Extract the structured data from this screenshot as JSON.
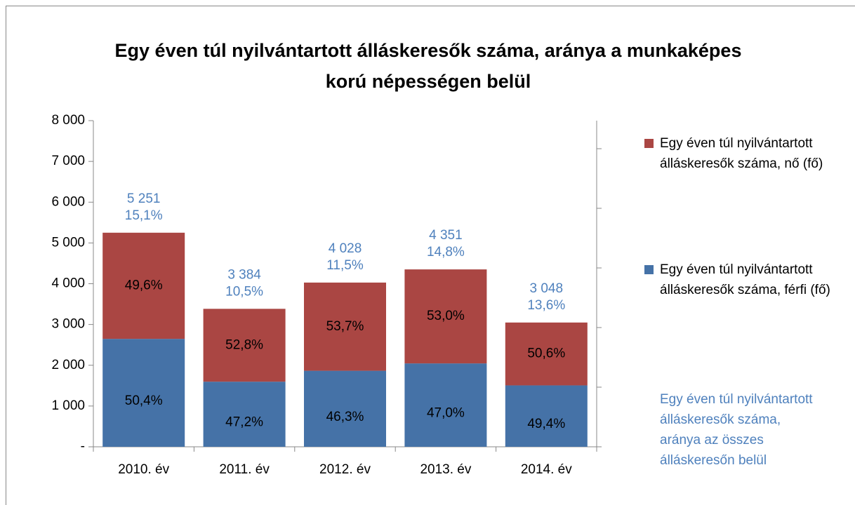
{
  "chart_data": {
    "type": "stacked_bar",
    "title": "Egy éven túl nyilvántartott álláskeresők száma, aránya a munkaképes korú népességen belül",
    "categories": [
      "2010. év",
      "2011. év",
      "2012. év",
      "2013. év",
      "2014. év"
    ],
    "series": [
      {
        "name": "Egy éven túl nyilvántartott álláskeresők száma, férfi (fő)",
        "color": "#4572a7",
        "values": [
          2647,
          1597,
          1865,
          2045,
          1506
        ],
        "share_labels": [
          "50,4%",
          "47,2%",
          "46,3%",
          "47,0%",
          "49,4%"
        ]
      },
      {
        "name": "Egy éven túl nyilvántartott álláskeresők száma, nő (fő)",
        "color": "#aa4643",
        "values": [
          2604,
          1787,
          2163,
          2306,
          1542
        ],
        "share_labels": [
          "49,6%",
          "52,8%",
          "53,7%",
          "53,0%",
          "50,6%"
        ]
      },
      {
        "name": "Egy éven túl nyilvántartott álláskeresők száma, aránya az összes álláskeresőn belül",
        "color": "#4f81bd",
        "axis": "y2",
        "values": [
          15.1,
          10.5,
          11.5,
          14.8,
          13.6
        ],
        "value_labels": [
          "15,1%",
          "10,5%",
          "11,5%",
          "14,8%",
          "13,6%"
        ]
      }
    ],
    "totals": [
      5251,
      3384,
      4028,
      4351,
      3048
    ],
    "total_labels": [
      "5 251",
      "3 384",
      "4 028",
      "4 351",
      "3 048"
    ],
    "ylim": [
      0,
      8000
    ],
    "yticks": [
      {
        "value": 0,
        "label": "-"
      },
      {
        "value": 1000,
        "label": "1 000"
      },
      {
        "value": 2000,
        "label": "2 000"
      },
      {
        "value": 3000,
        "label": "3 000"
      },
      {
        "value": 4000,
        "label": "4 000"
      },
      {
        "value": 5000,
        "label": "5 000"
      },
      {
        "value": 6000,
        "label": "6 000"
      },
      {
        "value": 7000,
        "label": "7 000"
      },
      {
        "value": 8000,
        "label": "8 000"
      }
    ],
    "grid": false
  }
}
